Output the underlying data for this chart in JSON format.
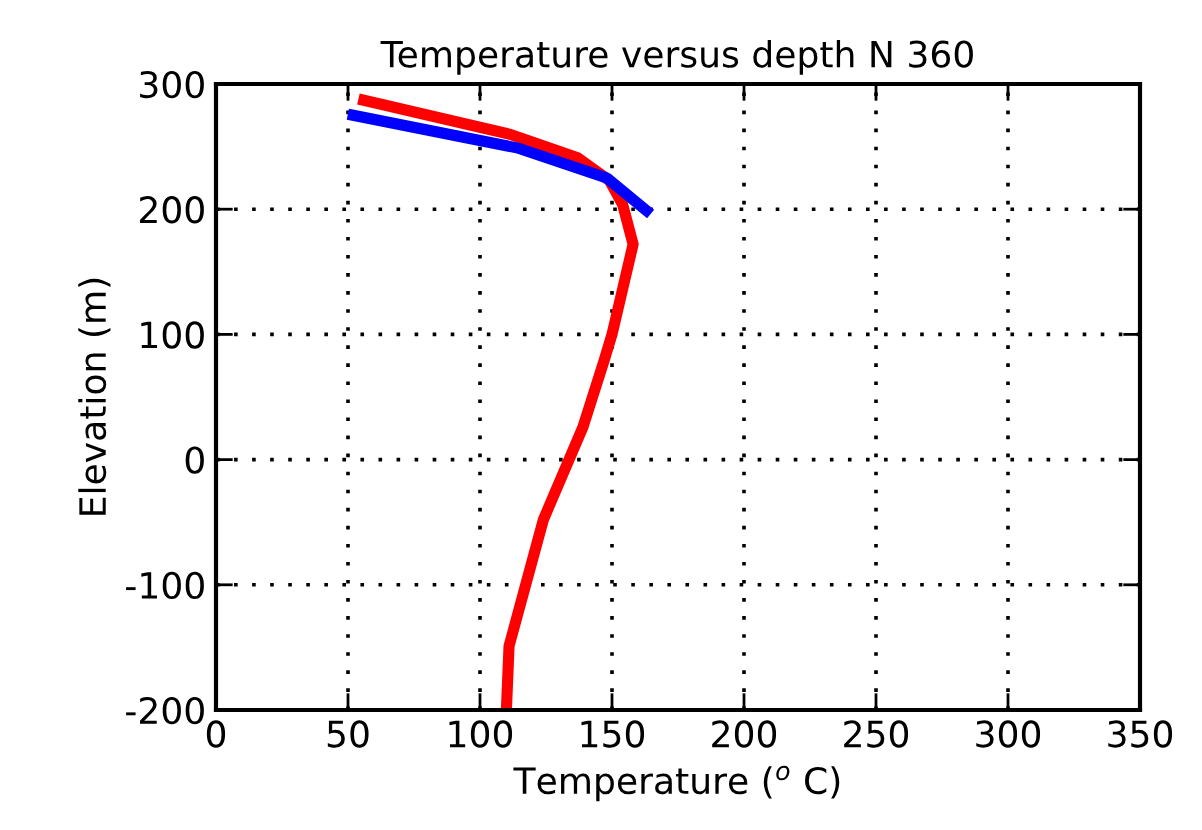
{
  "chart_data": {
    "type": "line",
    "title": "Temperature versus depth N 360",
    "xlabel": "Temperature ($^{o}$ C)",
    "ylabel": "Elevation (m)",
    "series": [
      {
        "color": "#ff0000",
        "x": [
          56,
          111,
          137,
          149,
          154,
          158,
          150,
          147,
          139,
          124,
          111,
          110
        ],
        "values": [
          287,
          260,
          241,
          223,
          204,
          172,
          100,
          79,
          26,
          -48,
          -149,
          -200
        ]
      },
      {
        "color": "#0000ff",
        "x": [
          52,
          114,
          148,
          163
        ],
        "values": [
          275,
          249,
          225,
          199
        ]
      }
    ],
    "xlim": [
      0,
      350
    ],
    "xticks": [
      0,
      50,
      100,
      150,
      200,
      250,
      300,
      350
    ],
    "ylim": [
      -200,
      300
    ],
    "yticks": [
      -200,
      -100,
      0,
      100,
      200,
      300
    ],
    "grid": true,
    "line_style": "solid",
    "marker": "none"
  }
}
